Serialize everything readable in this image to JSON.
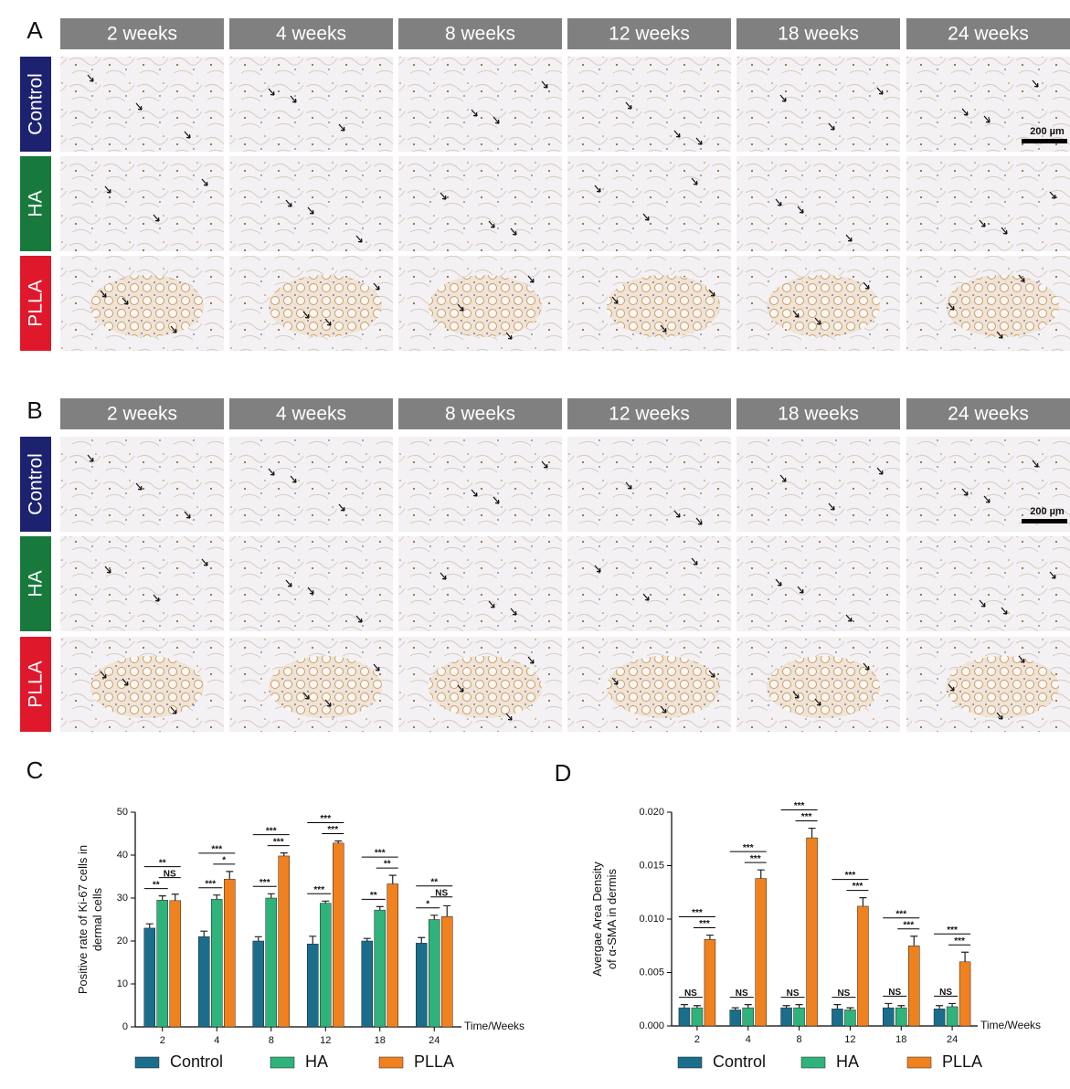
{
  "panel_a": {
    "label": "A",
    "columns": [
      "2 weeks",
      "4 weeks",
      "8 weeks",
      "12 weeks",
      "18 weeks",
      "24 weeks"
    ],
    "rows": [
      "Control",
      "HA",
      "PLLA"
    ],
    "scale_bar": "200 µm"
  },
  "panel_b": {
    "label": "B",
    "columns": [
      "2 weeks",
      "4 weeks",
      "8 weeks",
      "12 weeks",
      "18 weeks",
      "24 weeks"
    ],
    "rows": [
      "Control",
      "HA",
      "PLLA"
    ],
    "scale_bar": "200 µm"
  },
  "chart_data": [
    {
      "type": "bar",
      "label": "C",
      "y_label": [
        "Positive rate of Ki-67 cells in",
        "dermal cells"
      ],
      "x_label": "Time/Weeks",
      "categories": [
        "2",
        "4",
        "8",
        "12",
        "18",
        "24"
      ],
      "series": [
        {
          "name": "Control",
          "color": "#1b6d8c",
          "values": [
            23,
            21,
            20,
            19.3,
            20,
            19.5
          ],
          "errors": [
            1,
            1.3,
            1,
            1.8,
            0.6,
            1.3
          ]
        },
        {
          "name": "HA",
          "color": "#2fb37a",
          "values": [
            29.5,
            29.7,
            30,
            28.8,
            27.2,
            25
          ],
          "errors": [
            1,
            1,
            1,
            0.5,
            0.8,
            1
          ]
        },
        {
          "name": "PLLA",
          "color": "#f0811f",
          "values": [
            29.4,
            34.4,
            39.8,
            42.8,
            33.3,
            25.7
          ],
          "errors": [
            1.5,
            1.8,
            0.7,
            0.5,
            2,
            2.5
          ]
        }
      ],
      "annotations": [
        {
          "control_vs_ha": "**",
          "ha_vs_plla": "NS",
          "control_vs_plla": "**"
        },
        {
          "control_vs_ha": "***",
          "ha_vs_plla": "*",
          "control_vs_plla": "***"
        },
        {
          "control_vs_ha": "***",
          "ha_vs_plla": "***",
          "control_vs_plla": "***"
        },
        {
          "control_vs_ha": "***",
          "ha_vs_plla": "***",
          "control_vs_plla": "***"
        },
        {
          "control_vs_ha": "**",
          "ha_vs_plla": "**",
          "control_vs_plla": "***"
        },
        {
          "control_vs_ha": "*",
          "ha_vs_plla": "NS",
          "control_vs_plla": "**"
        }
      ],
      "ylim": [
        0,
        50
      ],
      "yticks": [
        0,
        10,
        20,
        30,
        40,
        50
      ]
    },
    {
      "type": "bar",
      "label": "D",
      "y_label": [
        "Avergae Area Density",
        "of α-SMA in dermis"
      ],
      "x_label": "Time/Weeks",
      "categories": [
        "2",
        "4",
        "8",
        "12",
        "18",
        "24"
      ],
      "series": [
        {
          "name": "Control",
          "color": "#1b6d8c",
          "values": [
            0.0017,
            0.0015,
            0.0017,
            0.0016,
            0.0017,
            0.0016
          ],
          "errors": [
            0.0003,
            0.0002,
            0.0002,
            0.0004,
            0.0004,
            0.0003
          ]
        },
        {
          "name": "HA",
          "color": "#2fb37a",
          "values": [
            0.0017,
            0.0017,
            0.0017,
            0.0015,
            0.0017,
            0.0018
          ],
          "errors": [
            0.0002,
            0.0003,
            0.0003,
            0.0002,
            0.0002,
            0.0003
          ]
        },
        {
          "name": "PLLA",
          "color": "#f0811f",
          "values": [
            0.0081,
            0.0138,
            0.0176,
            0.0112,
            0.0075,
            0.006
          ],
          "errors": [
            0.0004,
            0.0008,
            0.0009,
            0.0008,
            0.0009,
            0.0009
          ]
        }
      ],
      "annotations": [
        {
          "control_vs_ha": "NS",
          "ha_vs_plla": "***",
          "control_vs_plla": "***"
        },
        {
          "control_vs_ha": "NS",
          "ha_vs_plla": "***",
          "control_vs_plla": "***"
        },
        {
          "control_vs_ha": "NS",
          "ha_vs_plla": "***",
          "control_vs_plla": "***"
        },
        {
          "control_vs_ha": "NS",
          "ha_vs_plla": "***",
          "control_vs_plla": "***"
        },
        {
          "control_vs_ha": "NS",
          "ha_vs_plla": "***",
          "control_vs_plla": "***"
        },
        {
          "control_vs_ha": "NS",
          "ha_vs_plla": "***",
          "control_vs_plla": "***"
        }
      ],
      "ylim": [
        0,
        0.02
      ],
      "yticks": [
        {
          "value": 0,
          "label": "0.000"
        },
        {
          "value": 0.005,
          "label": "0.005"
        },
        {
          "value": 0.01,
          "label": "0.010"
        },
        {
          "value": 0.015,
          "label": "0.015"
        },
        {
          "value": 0.02,
          "label": "0.020"
        }
      ]
    }
  ]
}
